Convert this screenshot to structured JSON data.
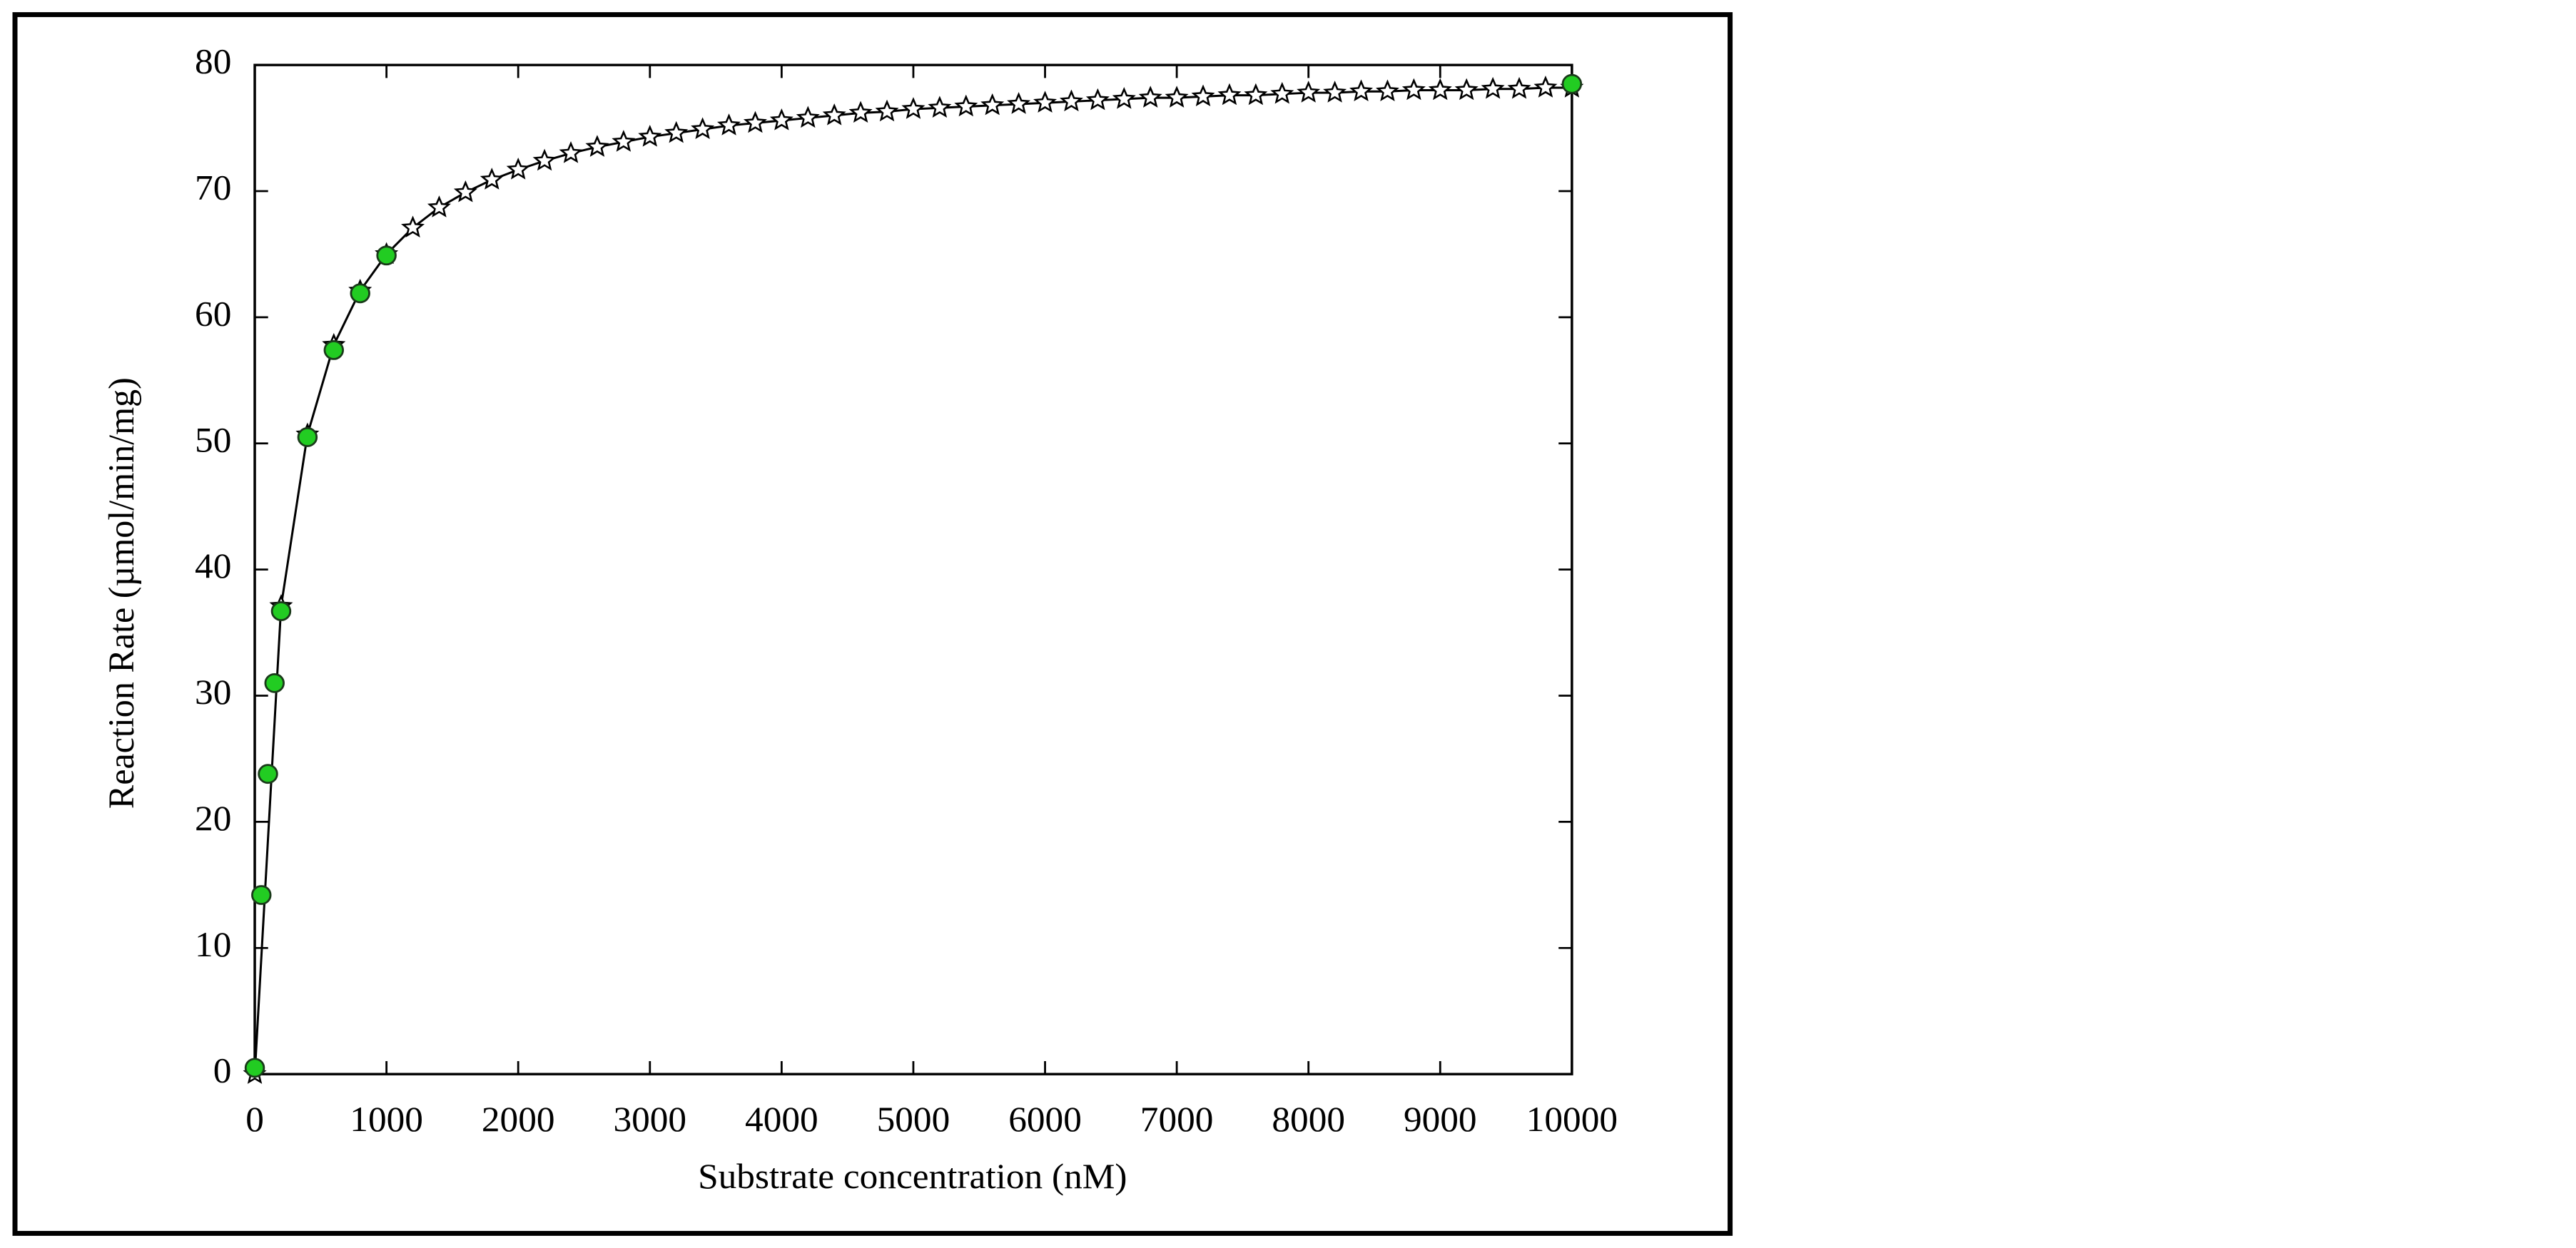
{
  "chart_data": {
    "type": "scatter",
    "x_label": "Substrate concentration (nM)",
    "y_label": "Reaction Rate (µmol/min/mg)",
    "xlim": [
      0,
      10000
    ],
    "ylim": [
      0,
      80
    ],
    "xticks": [
      0,
      1000,
      2000,
      3000,
      4000,
      5000,
      6000,
      7000,
      8000,
      9000,
      10000
    ],
    "yticks": [
      0,
      10,
      20,
      30,
      40,
      50,
      60,
      70,
      80
    ],
    "grid": false,
    "series": [
      {
        "color": "#000000",
        "marker": "star",
        "line": true,
        "x": [
          0,
          200,
          400,
          600,
          800,
          1000,
          1200,
          1400,
          1600,
          1800,
          2000,
          2200,
          2400,
          2600,
          2800,
          3000,
          3200,
          3400,
          3600,
          3800,
          4000,
          4200,
          4400,
          4600,
          4800,
          5000,
          5200,
          5400,
          5600,
          5800,
          6000,
          6200,
          6400,
          6600,
          6800,
          7000,
          7200,
          7400,
          7600,
          7800,
          8000,
          8200,
          8400,
          8600,
          8800,
          9000,
          9200,
          9400,
          9600,
          9800,
          10000
        ],
        "values": [
          0,
          37.1,
          50.7,
          57.8,
          62.1,
          65.0,
          67.1,
          68.7,
          69.9,
          70.9,
          71.7,
          72.4,
          73.0,
          73.5,
          73.9,
          74.3,
          74.6,
          74.9,
          75.2,
          75.4,
          75.6,
          75.8,
          76.0,
          76.2,
          76.3,
          76.5,
          76.6,
          76.7,
          76.8,
          76.9,
          77.0,
          77.1,
          77.2,
          77.3,
          77.4,
          77.4,
          77.5,
          77.6,
          77.6,
          77.7,
          77.8,
          77.8,
          77.9,
          77.9,
          78.0,
          78.0,
          78.0,
          78.1,
          78.1,
          78.2,
          78.2
        ]
      },
      {
        "color": "#22cc22",
        "marker": "circle",
        "line": false,
        "x": [
          0,
          50,
          100,
          150,
          200,
          400,
          600,
          800,
          1000,
          10000
        ],
        "values": [
          0.5,
          14.2,
          23.8,
          31.0,
          36.7,
          50.5,
          57.4,
          61.9,
          64.9,
          78.5
        ]
      }
    ]
  }
}
